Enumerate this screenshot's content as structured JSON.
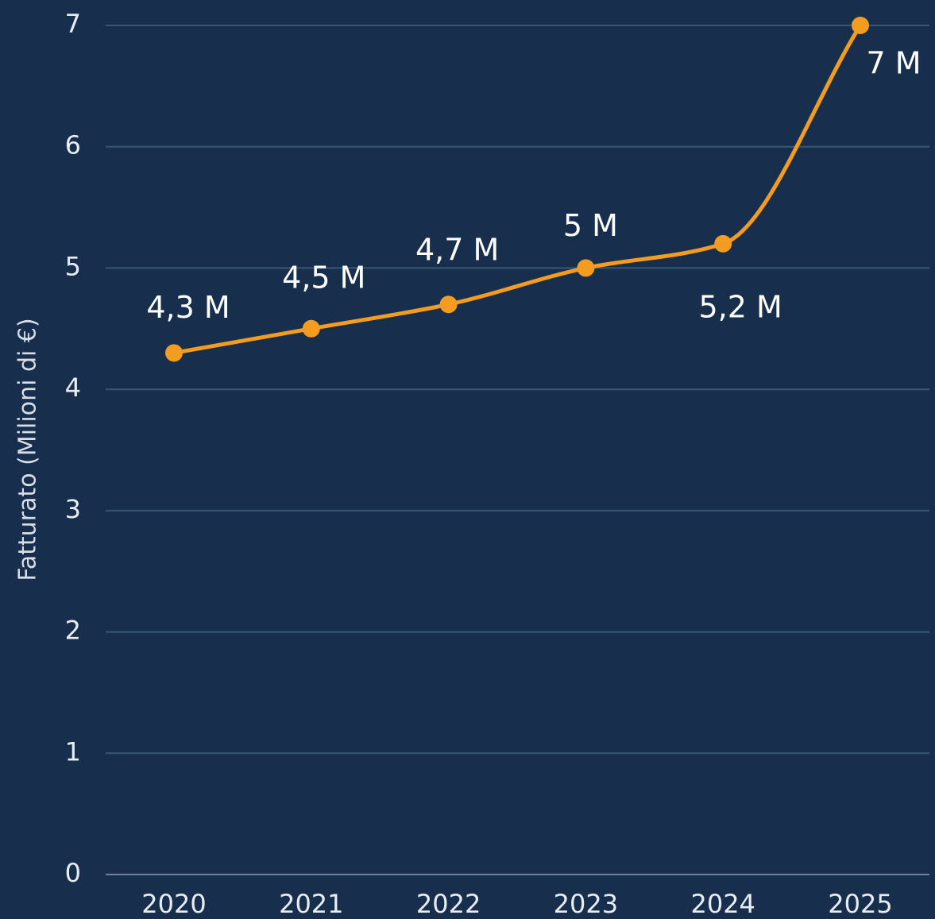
{
  "chart_data": {
    "type": "line",
    "y_label": "Fatturato (Milioni di €)",
    "categories": [
      "2020",
      "2021",
      "2022",
      "2023",
      "2024",
      "2025"
    ],
    "series": [
      {
        "name": "Fatturato",
        "color": "#f39c1f",
        "values": [
          4.3,
          4.5,
          4.7,
          5,
          5.2,
          7
        ],
        "value_labels": [
          "4,3 M",
          "4,5 M",
          "4,7 M",
          "5 M",
          "5,2 M",
          "7 M"
        ]
      }
    ],
    "ylim": [
      0,
      7
    ],
    "yticks": [
      0,
      1,
      2,
      3,
      4,
      5,
      6,
      7
    ],
    "grid": true
  }
}
